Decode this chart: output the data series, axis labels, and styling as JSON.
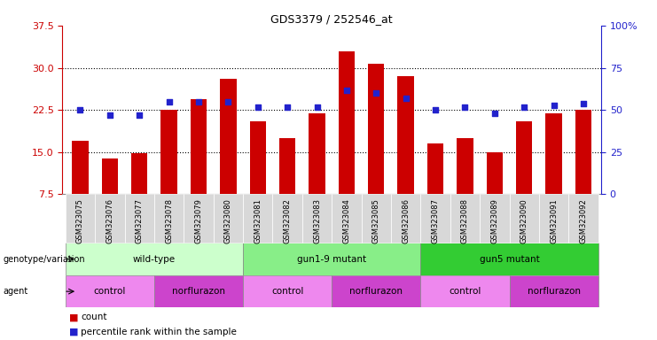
{
  "title": "GDS3379 / 252546_at",
  "samples": [
    "GSM323075",
    "GSM323076",
    "GSM323077",
    "GSM323078",
    "GSM323079",
    "GSM323080",
    "GSM323081",
    "GSM323082",
    "GSM323083",
    "GSM323084",
    "GSM323085",
    "GSM323086",
    "GSM323087",
    "GSM323088",
    "GSM323089",
    "GSM323090",
    "GSM323091",
    "GSM323092"
  ],
  "counts": [
    17.0,
    13.8,
    14.8,
    22.5,
    24.5,
    28.0,
    20.5,
    17.5,
    22.0,
    33.0,
    30.8,
    28.5,
    16.5,
    17.5,
    15.0,
    20.5,
    22.0,
    22.5
  ],
  "percentile_ranks": [
    50,
    47,
    47,
    55,
    55,
    55,
    52,
    52,
    52,
    62,
    60,
    57,
    50,
    52,
    48,
    52,
    53,
    54
  ],
  "bar_color": "#cc0000",
  "dot_color": "#2222cc",
  "ylim_left": [
    7.5,
    37.5
  ],
  "ylim_right": [
    0,
    100
  ],
  "yticks_left": [
    7.5,
    15.0,
    22.5,
    30.0,
    37.5
  ],
  "yticks_right": [
    0,
    25,
    50,
    75,
    100
  ],
  "hlines": [
    15.0,
    22.5,
    30.0
  ],
  "genotype_groups": [
    {
      "label": "wild-type",
      "start": 0,
      "end": 6,
      "color": "#ccffcc"
    },
    {
      "label": "gun1-9 mutant",
      "start": 6,
      "end": 12,
      "color": "#88ee88"
    },
    {
      "label": "gun5 mutant",
      "start": 12,
      "end": 18,
      "color": "#33cc33"
    }
  ],
  "agent_groups": [
    {
      "label": "control",
      "start": 0,
      "end": 3,
      "color": "#ee88ee"
    },
    {
      "label": "norflurazon",
      "start": 3,
      "end": 6,
      "color": "#cc44cc"
    },
    {
      "label": "control",
      "start": 6,
      "end": 9,
      "color": "#ee88ee"
    },
    {
      "label": "norflurazon",
      "start": 9,
      "end": 12,
      "color": "#cc44cc"
    },
    {
      "label": "control",
      "start": 12,
      "end": 15,
      "color": "#ee88ee"
    },
    {
      "label": "norflurazon",
      "start": 15,
      "end": 18,
      "color": "#cc44cc"
    }
  ],
  "genotype_label": "genotype/variation",
  "agent_label": "agent",
  "left_axis_color": "#cc0000",
  "right_axis_color": "#2222cc",
  "xticklabel_bg": "#d8d8d8",
  "bar_width": 0.55
}
